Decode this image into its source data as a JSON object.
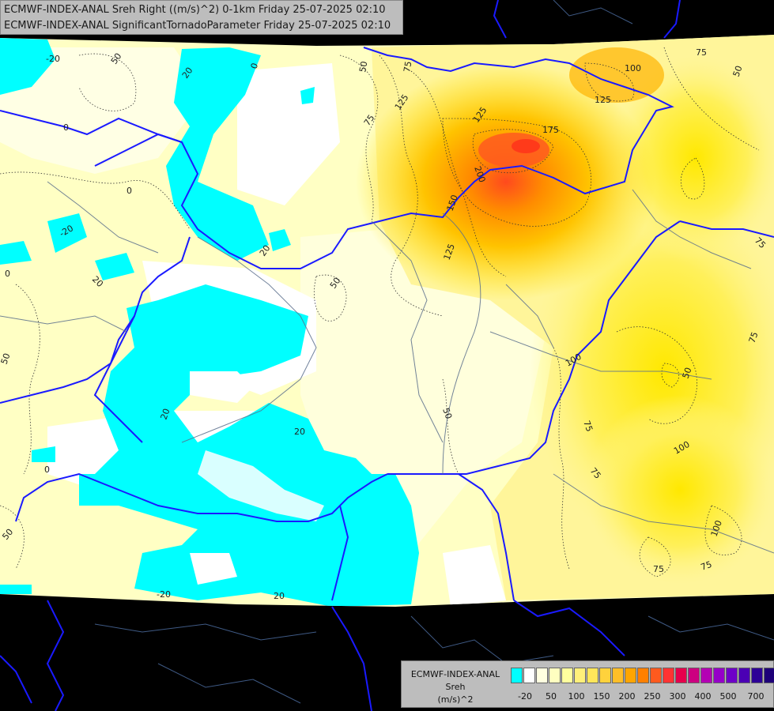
{
  "title": {
    "line1": "ECMWF-INDEX-ANAL Sreh Right ((m/s)^2) 0-1km Friday 25-07-2025 02:10",
    "line2": "ECMWF-INDEX-ANAL SignificantTornadoParameter Friday 25-07-2025 02:10"
  },
  "legend": {
    "name1": "ECMWF-INDEX-ANAL",
    "name2": "Sreh",
    "unit": "(m/s)^2",
    "colors": [
      "#00ffff",
      "#ffffff",
      "#ffffe0",
      "#ffffc0",
      "#ffff9e",
      "#fff07a",
      "#ffe65a",
      "#ffd23c",
      "#ffbe28",
      "#ffa500",
      "#ff8000",
      "#ff5a1e",
      "#ff3333",
      "#e6004c",
      "#cc0080",
      "#b400b4",
      "#9600c8",
      "#6e00c8",
      "#4b00b4",
      "#2d0096",
      "#1e0078",
      "#140064"
    ],
    "ticks": [
      "-20",
      "50",
      "100",
      "150",
      "200",
      "250",
      "300",
      "400",
      "500",
      "700"
    ]
  },
  "contour_labels": [
    "-20",
    "20",
    "0",
    "50",
    "75",
    "100",
    "125",
    "150",
    "175",
    "200"
  ]
}
